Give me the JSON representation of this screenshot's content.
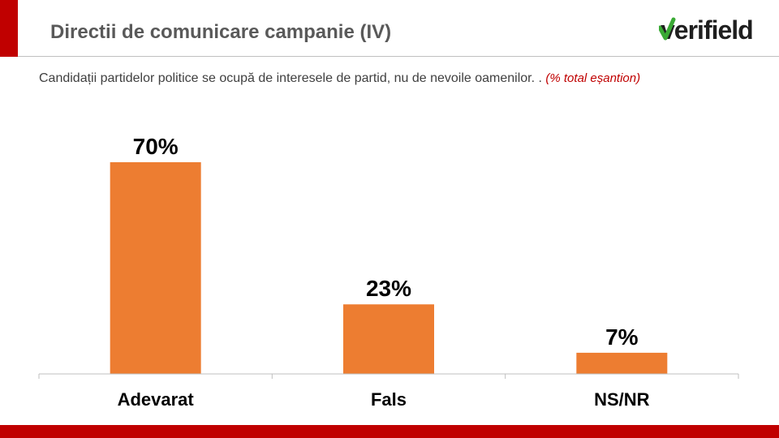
{
  "header": {
    "title": "Directii de comunicare campanie (IV)",
    "logo_text": "verifield",
    "logo_color": "#1f1f1f",
    "logo_check_color": "#3aaa35"
  },
  "subtitle": {
    "text": "Candidații partidelor politice se ocupă de interesele de partid, nu de nevoile oamenilor. . ",
    "note": "(% total eșantion)"
  },
  "colors": {
    "accent": "#c00000",
    "bar": "#ed7d31",
    "title": "#595959"
  },
  "chart_data": {
    "type": "bar",
    "categories": [
      "Adevarat",
      "Fals",
      "NS/NR"
    ],
    "values": [
      70,
      23,
      7
    ],
    "data_labels": [
      "70%",
      "23%",
      "7%"
    ],
    "ylim": [
      0,
      70
    ],
    "grid": false,
    "legend": "none",
    "title": "",
    "xlabel": "",
    "ylabel": ""
  }
}
